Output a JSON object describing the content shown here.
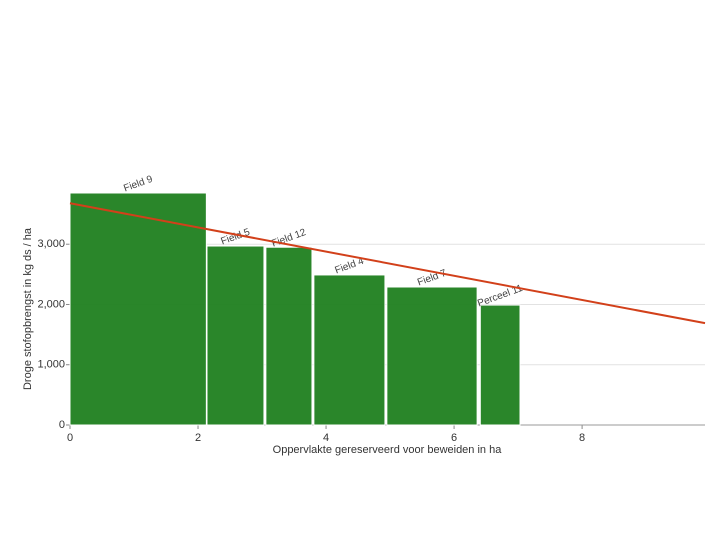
{
  "chart_data": {
    "type": "bar",
    "x_label": "Oppervlakte gereserveerd voor beweiden in ha",
    "y_label": "Droge stofopbrengst in kg ds / ha",
    "categories": [
      "Field 9",
      "Field 5",
      "Field 12",
      "Field 4",
      "Field 7",
      "Perceel 11"
    ],
    "x_start": [
      0,
      2.14,
      3.06,
      3.81,
      4.95,
      6.41
    ],
    "x_end": [
      2.13,
      3.03,
      3.78,
      4.92,
      6.36,
      7.03
    ],
    "values": [
      3850,
      2970,
      2950,
      2490,
      2290,
      1990
    ],
    "color": "#1f7f1f",
    "trend": {
      "x": [
        0,
        9.92
      ],
      "values": [
        3680,
        1690
      ],
      "color": "#d2401a"
    },
    "xlim": [
      0,
      9.92
    ],
    "ylim": [
      0,
      3850
    ],
    "xticks": [
      0,
      2,
      4,
      6,
      8
    ],
    "yticks": [
      0,
      {
        "value": 1000,
        "label": "1,000"
      },
      {
        "value": 2000,
        "label": "2,000"
      },
      {
        "value": 3000,
        "label": "3,000"
      }
    ],
    "grid": true
  }
}
